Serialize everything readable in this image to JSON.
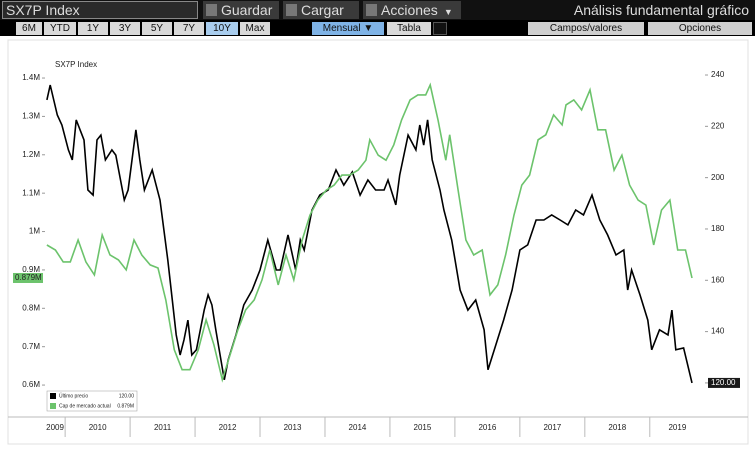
{
  "toolbar": {
    "ticker": "SX7P Index",
    "buttons": [
      "Guardar",
      "Cargar",
      "Acciones"
    ],
    "title": "Análisis fundamental gráfico",
    "ranges": [
      "6M",
      "YTD",
      "1Y",
      "3Y",
      "5Y",
      "7Y",
      "10Y",
      "Max"
    ],
    "active_range": 6,
    "frequency": "Mensual",
    "table": "Tabla",
    "fields": "Campos/valores",
    "options": "Opciones"
  },
  "chart_data": {
    "type": "line",
    "title": "SX7P Index",
    "xlim": [
      2009.69,
      2019.85
    ],
    "xticks": [
      2009,
      2010,
      2011,
      2012,
      2013,
      2014,
      2015,
      2016,
      2017,
      2018,
      2019
    ],
    "ylim": [
      0.522,
      1.46
    ],
    "yticks": [
      {
        "value": 0.6,
        "label": "0.6M"
      },
      {
        "value": 0.7,
        "label": "0.7M"
      },
      {
        "value": 0.8,
        "label": "0.8M"
      },
      {
        "value": 0.9,
        "label": "0.9M"
      },
      {
        "value": 1.0,
        "label": "1M"
      },
      {
        "value": 1.1,
        "label": "1.1M"
      },
      {
        "value": 1.2,
        "label": "1.2M"
      },
      {
        "value": 1.3,
        "label": "1.3M"
      },
      {
        "value": 1.4,
        "label": "1.4M"
      }
    ],
    "y2lim": [
      107.5,
      247.8
    ],
    "y2ticks": [
      120,
      140,
      160,
      180,
      200,
      220,
      240
    ],
    "legend": "lower left",
    "series": [
      {
        "name": "Último precio",
        "color": "#000000",
        "axis": "y2",
        "last_label": "120.00",
        "x": [
          2009.72,
          2009.77,
          2009.88,
          2009.95,
          2010.05,
          2010.11,
          2010.17,
          2010.23,
          2010.29,
          2010.35,
          2010.43,
          2010.49,
          2010.55,
          2010.62,
          2010.72,
          2010.78,
          2010.91,
          2010.97,
          2011.09,
          2011.15,
          2011.22,
          2011.34,
          2011.4,
          2011.46,
          2011.52,
          2011.58,
          2011.65,
          2011.71,
          2011.77,
          2011.83,
          2011.89,
          2011.95,
          2012.02,
          2012.14,
          2012.2,
          2012.26,
          2012.32,
          2012.45,
          2012.51,
          2012.63,
          2012.75,
          2012.88,
          2013.0,
          2013.12,
          2013.25,
          2013.31,
          2013.43,
          2013.55,
          2013.62,
          2013.68,
          2013.8,
          2013.92,
          2014.05,
          2014.17,
          2014.29,
          2014.42,
          2014.54,
          2014.66,
          2014.78,
          2014.91,
          2014.97,
          2015.09,
          2015.15,
          2015.28,
          2015.4,
          2015.46,
          2015.52,
          2015.58,
          2015.65,
          2015.77,
          2015.83,
          2015.95,
          2016.08,
          2016.2,
          2016.32,
          2016.45,
          2016.51,
          2016.63,
          2016.75,
          2016.88,
          2017.0,
          2017.12,
          2017.25,
          2017.37,
          2017.49,
          2017.62,
          2017.74,
          2017.86,
          2017.98,
          2018.11,
          2018.23,
          2018.35,
          2018.48,
          2018.6,
          2018.66,
          2018.72,
          2018.85,
          2018.97,
          2019.03,
          2019.15,
          2019.28,
          2019.34,
          2019.4,
          2019.52,
          2019.65
        ],
        "values": [
          230.3,
          236.1,
          224.4,
          220.5,
          210.8,
          206.9,
          222.5,
          218.6,
          214.7,
          195.2,
          193.2,
          214.7,
          216.6,
          206.9,
          210.8,
          208.8,
          191.3,
          195.2,
          218.6,
          206.9,
          195.2,
          203.0,
          197.1,
          191.3,
          179.6,
          167.9,
          152.3,
          138.7,
          130.9,
          136.8,
          144.5,
          130.9,
          132.9,
          148.4,
          154.3,
          150.4,
          140.7,
          121.2,
          129.0,
          138.7,
          150.4,
          156.2,
          164.0,
          175.7,
          164.0,
          164.0,
          177.7,
          164.0,
          175.7,
          171.8,
          187.4,
          193.2,
          195.2,
          203.0,
          197.1,
          202.2,
          193.2,
          199.1,
          195.2,
          195.2,
          199.1,
          189.4,
          201.0,
          216.6,
          210.8,
          220.5,
          212.7,
          222.5,
          206.9,
          195.2,
          187.4,
          175.7,
          156.2,
          148.4,
          152.3,
          140.7,
          125.1,
          134.8,
          144.5,
          156.2,
          171.8,
          173.8,
          183.5,
          183.5,
          185.5,
          183.5,
          181.6,
          187.4,
          185.5,
          193.2,
          183.5,
          177.7,
          169.9,
          171.8,
          156.2,
          164.0,
          154.3,
          144.5,
          132.9,
          140.7,
          138.7,
          148.4,
          132.9,
          133.6,
          120.0
        ]
      },
      {
        "name": "Cap de mercado actual",
        "color": "#6cc36c",
        "axis": "y",
        "last_label": "0.879M",
        "x": [
          2009.72,
          2009.85,
          2009.97,
          2010.08,
          2010.2,
          2010.32,
          2010.45,
          2010.57,
          2010.69,
          2010.82,
          2010.94,
          2011.06,
          2011.18,
          2011.31,
          2011.43,
          2011.55,
          2011.68,
          2011.8,
          2011.92,
          2012.05,
          2012.17,
          2012.29,
          2012.42,
          2012.54,
          2012.66,
          2012.78,
          2012.91,
          2013.03,
          2013.15,
          2013.28,
          2013.4,
          2013.52,
          2013.65,
          2013.77,
          2013.89,
          2014.02,
          2014.14,
          2014.26,
          2014.38,
          2014.51,
          2014.63,
          2014.69,
          2014.82,
          2014.94,
          2015.06,
          2015.18,
          2015.31,
          2015.43,
          2015.55,
          2015.62,
          2015.74,
          2015.86,
          2015.92,
          2016.05,
          2016.17,
          2016.29,
          2016.42,
          2016.54,
          2016.66,
          2016.78,
          2016.91,
          2017.03,
          2017.15,
          2017.28,
          2017.4,
          2017.52,
          2017.65,
          2017.71,
          2017.83,
          2017.95,
          2018.08,
          2018.2,
          2018.32,
          2018.45,
          2018.57,
          2018.69,
          2018.82,
          2018.94,
          2019.06,
          2019.18,
          2019.31,
          2019.43,
          2019.55,
          2019.65
        ],
        "values": [
          0.965,
          0.952,
          0.921,
          0.921,
          0.978,
          0.921,
          0.887,
          0.991,
          0.939,
          0.926,
          0.9,
          0.978,
          0.939,
          0.913,
          0.905,
          0.822,
          0.692,
          0.64,
          0.64,
          0.692,
          0.77,
          0.705,
          0.614,
          0.679,
          0.744,
          0.796,
          0.822,
          0.874,
          0.952,
          0.861,
          0.939,
          0.874,
          0.978,
          1.043,
          1.082,
          1.108,
          1.121,
          1.147,
          1.147,
          1.16,
          1.186,
          1.239,
          1.199,
          1.186,
          1.226,
          1.291,
          1.343,
          1.356,
          1.356,
          1.382,
          1.291,
          1.186,
          1.252,
          1.108,
          0.978,
          0.939,
          0.952,
          0.835,
          0.861,
          0.939,
          1.043,
          1.121,
          1.147,
          1.239,
          1.252,
          1.304,
          1.278,
          1.33,
          1.343,
          1.317,
          1.369,
          1.265,
          1.265,
          1.16,
          1.199,
          1.121,
          1.082,
          1.069,
          0.965,
          1.056,
          1.082,
          0.952,
          0.952,
          0.879
        ]
      }
    ]
  }
}
